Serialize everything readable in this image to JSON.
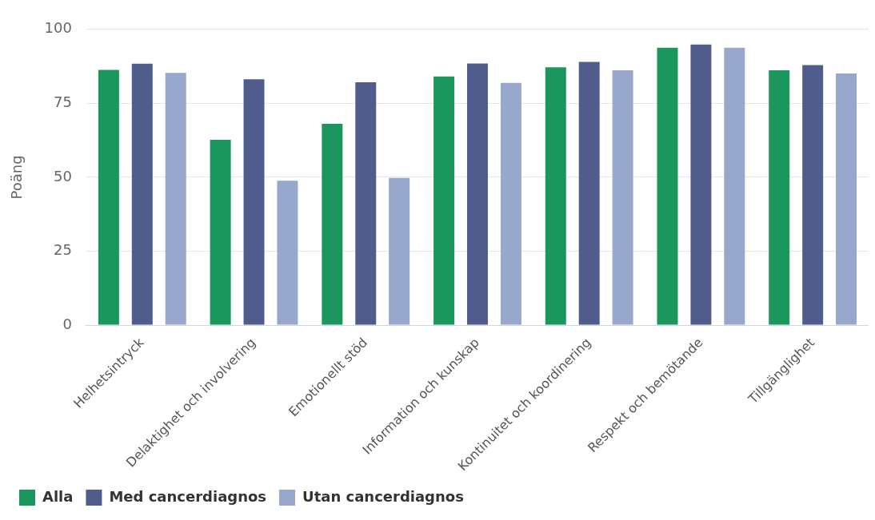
{
  "chart_data": {
    "type": "bar",
    "ylabel": "Poäng",
    "categories": [
      "Helhetsintryck",
      "Delaktighet och involvering",
      "Emotionellt stöd",
      "Information och kunskap",
      "Kontinuitet och koordinering",
      "Respekt och bemötande",
      "Tillgänglighet"
    ],
    "series": [
      {
        "name": "Alla",
        "color": "#1b965c",
        "values": [
          86.3,
          62.7,
          68.1,
          84.1,
          87.2,
          93.8,
          86.2
        ]
      },
      {
        "name": "Med cancerdiagnos",
        "color": "#505d8c",
        "values": [
          88.4,
          83.1,
          82.1,
          88.5,
          89.0,
          94.9,
          87.9
        ]
      },
      {
        "name": "Utan cancerdiagnos",
        "color": "#98a8cc",
        "values": [
          85.3,
          48.8,
          49.8,
          81.9,
          86.2,
          93.8,
          85.1
        ]
      }
    ],
    "ylim": [
      0,
      100
    ],
    "yticks": [
      0,
      25,
      50,
      75,
      100
    ],
    "grid": "y",
    "legend": "bottom left"
  }
}
